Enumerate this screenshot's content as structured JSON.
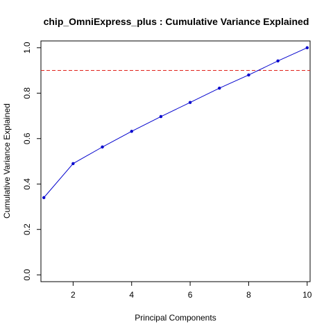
{
  "chart_data": {
    "type": "line",
    "title": "chip_OmniExpress_plus : Cumulative Variance Explained",
    "xlabel": "Principal Components",
    "ylabel": "Cumulative Variance Explained",
    "xlim": [
      0.9,
      10.1
    ],
    "ylim": [
      -0.03,
      1.03
    ],
    "x_ticks": [
      2,
      4,
      6,
      8,
      10
    ],
    "y_ticks": [
      0.0,
      0.2,
      0.4,
      0.6,
      0.8,
      1.0
    ],
    "x_tick_labels": [
      "2",
      "4",
      "6",
      "8",
      "10"
    ],
    "y_tick_labels": [
      "0.0",
      "0.2",
      "0.4",
      "0.6",
      "0.8",
      "1.0"
    ],
    "grid": false,
    "x": [
      1,
      2,
      3,
      4,
      5,
      6,
      7,
      8,
      9,
      10
    ],
    "series": [
      {
        "values": [
          0.34,
          0.49,
          0.563,
          0.632,
          0.697,
          0.759,
          0.822,
          0.88,
          0.942,
          1.0
        ],
        "color": "#0000CD"
      }
    ],
    "reference_line": {
      "y": 0.9,
      "color": "#E0201A",
      "style": "dashed"
    }
  }
}
